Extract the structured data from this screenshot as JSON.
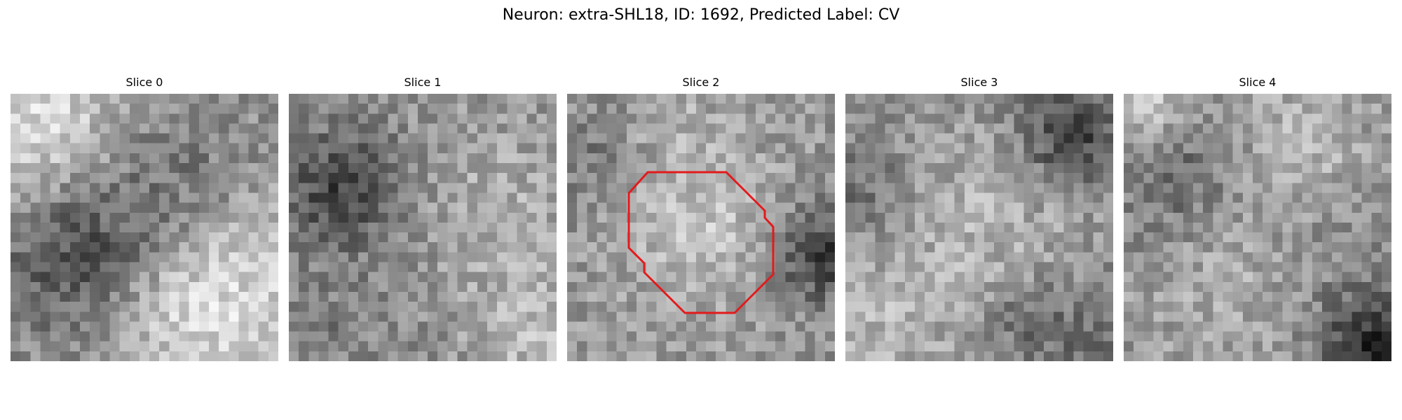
{
  "figure": {
    "title": "Neuron: extra-SHL18, ID: 1692, Predicted Label: CV"
  },
  "slices": [
    {
      "label": "Slice 0",
      "outline": false
    },
    {
      "label": "Slice 1",
      "outline": false
    },
    {
      "label": "Slice 2",
      "outline": true
    },
    {
      "label": "Slice 3",
      "outline": false
    },
    {
      "label": "Slice 4",
      "outline": false
    }
  ],
  "outline_color": "#e31a1c",
  "colormap": "gray"
}
